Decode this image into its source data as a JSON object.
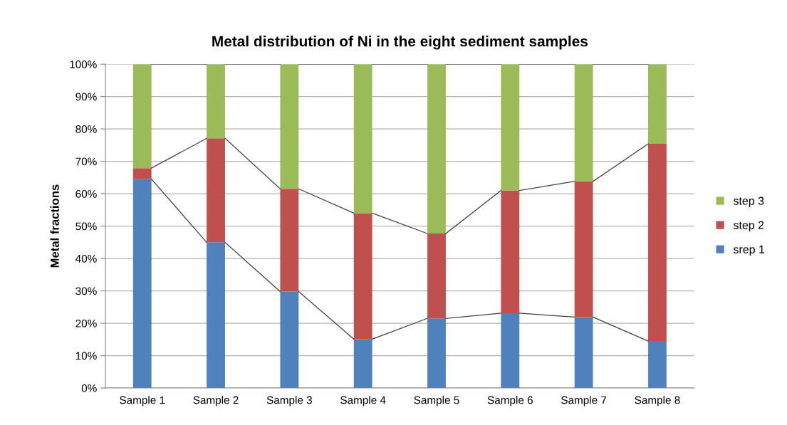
{
  "chart_data": {
    "type": "bar",
    "stacked": true,
    "title": "Metal distribution of Ni in the eight sediment samples",
    "ylabel": "Metal fractions",
    "categories": [
      "Sample 1",
      "Sample 2",
      "Sample 3",
      "Sample 4",
      "Sample 5",
      "Sample 6",
      "Sample 7",
      "Sample 8"
    ],
    "series": [
      {
        "name": "srep 1",
        "color": "#4f81bd",
        "values": [
          64.5,
          45.0,
          29.8,
          15.1,
          21.5,
          23.1,
          21.9,
          14.5
        ]
      },
      {
        "name": "step 2",
        "color": "#c0504d",
        "values": [
          3.4,
          32.1,
          31.7,
          38.9,
          26.2,
          37.9,
          41.9,
          60.9
        ]
      },
      {
        "name": "step 3",
        "color": "#9bbb59",
        "values": [
          32.1,
          22.9,
          38.5,
          46.0,
          52.3,
          39.0,
          36.2,
          24.6
        ]
      }
    ],
    "ylim": [
      0,
      100
    ],
    "yticks": [
      {
        "value": 0,
        "label": "0%"
      },
      {
        "value": 10,
        "label": "10%"
      },
      {
        "value": 20,
        "label": "20%"
      },
      {
        "value": 30,
        "label": "30%"
      },
      {
        "value": 40,
        "label": "40%"
      },
      {
        "value": 50,
        "label": "50%"
      },
      {
        "value": 60,
        "label": "60%"
      },
      {
        "value": 70,
        "label": "70%"
      },
      {
        "value": 80,
        "label": "80%"
      },
      {
        "value": 90,
        "label": "90%"
      },
      {
        "value": 100,
        "label": "100%"
      }
    ],
    "grid": "y",
    "legend": "right"
  }
}
